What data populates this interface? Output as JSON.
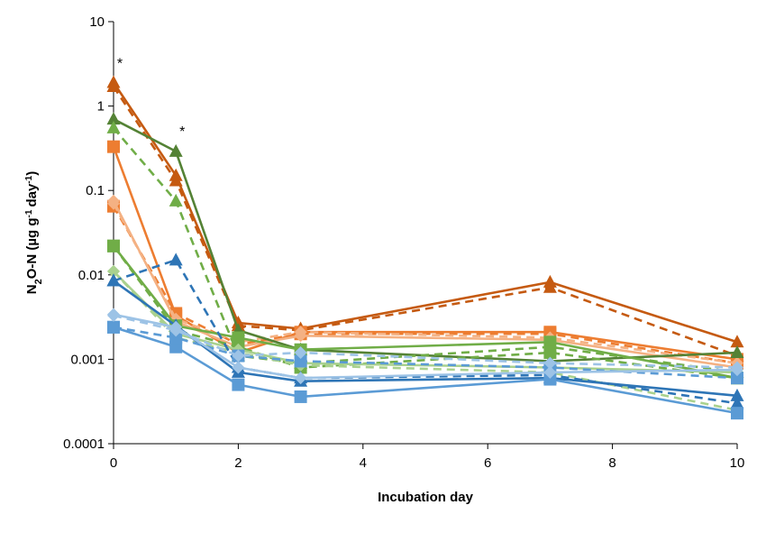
{
  "chart_data": {
    "type": "line",
    "title": "",
    "xlabel": "Incubation day",
    "ylabel": "N2O-N (µg g-1 day-1)",
    "ylabel_parts": {
      "p1": "N",
      "p2": "2",
      "p3": "O-N (µg g",
      "p4": "-1",
      "p5": "day",
      "p6": "-1",
      "p7": ")"
    },
    "y_scale": "log",
    "ylim": [
      0.0001,
      10
    ],
    "xlim": [
      0,
      10
    ],
    "x_ticks": [
      0,
      2,
      4,
      6,
      8,
      10
    ],
    "x_tick_labels": [
      "0",
      "2",
      "4",
      "6",
      "8",
      "10"
    ],
    "y_ticks": [
      0.0001,
      0.001,
      0.01,
      0.1,
      1,
      10
    ],
    "y_tick_labels": [
      "0.0001",
      "0.001",
      "0.01",
      "0.1",
      "1",
      "10"
    ],
    "grid": false,
    "legend": "none",
    "x": [
      0,
      1,
      2,
      3,
      7,
      10
    ],
    "annotations": [
      {
        "text": "*",
        "x": 0,
        "y": 3.2
      },
      {
        "text": "*",
        "x": 1,
        "y": 0.5
      }
    ],
    "series": [
      {
        "color": "#c55a11",
        "dash": false,
        "marker": "triangle",
        "values": [
          1.9,
          0.15,
          0.0027,
          0.0023,
          0.0082,
          0.0016
        ]
      },
      {
        "color": "#c55a11",
        "dash": true,
        "marker": "triangle",
        "values": [
          1.7,
          0.13,
          0.0025,
          0.0022,
          0.0071,
          0.0011
        ]
      },
      {
        "color": "#ed7d31",
        "dash": false,
        "marker": "square",
        "values": [
          0.33,
          0.0033,
          0.0012,
          0.0021,
          0.0021,
          0.001
        ]
      },
      {
        "color": "#ed7d31",
        "dash": true,
        "marker": "square",
        "values": [
          0.065,
          0.0035,
          0.0015,
          0.002,
          0.002,
          0.0009
        ]
      },
      {
        "color": "#f4b183",
        "dash": false,
        "marker": "diamond",
        "values": [
          0.075,
          0.0028,
          0.0014,
          0.0019,
          0.0017,
          0.0008
        ]
      },
      {
        "color": "#f4b183",
        "dash": true,
        "marker": "diamond",
        "values": [
          0.07,
          0.003,
          0.0016,
          0.0021,
          0.0018,
          0.0009
        ]
      },
      {
        "color": "#548235",
        "dash": false,
        "marker": "triangle",
        "values": [
          0.7,
          0.29,
          0.0022,
          0.0013,
          0.00095,
          0.0012
        ]
      },
      {
        "color": "#70ad47",
        "dash": true,
        "marker": "triangle",
        "values": [
          0.55,
          0.075,
          0.0011,
          0.0009,
          0.0014,
          0.0007
        ]
      },
      {
        "color": "#70ad47",
        "dash": false,
        "marker": "square",
        "values": [
          0.022,
          0.0025,
          0.0018,
          0.0013,
          0.0016,
          0.0006
        ]
      },
      {
        "color": "#70ad47",
        "dash": true,
        "marker": "square",
        "values": [
          0.022,
          0.0022,
          0.0014,
          0.0008,
          0.0012,
          0.0006
        ]
      },
      {
        "color": "#a9d18e",
        "dash": false,
        "marker": "diamond",
        "values": [
          0.011,
          0.002,
          0.0013,
          0.0009,
          0.0008,
          0.0007
        ]
      },
      {
        "color": "#a9d18e",
        "dash": true,
        "marker": "diamond",
        "values": [
          0.011,
          0.0018,
          0.0012,
          0.00085,
          0.0007,
          0.00025
        ]
      },
      {
        "color": "#2e75b6",
        "dash": false,
        "marker": "triangle",
        "values": [
          0.0085,
          0.0025,
          0.0007,
          0.00055,
          0.0006,
          0.00037
        ]
      },
      {
        "color": "#2e75b6",
        "dash": true,
        "marker": "triangle",
        "values": [
          0.0085,
          0.015,
          0.0008,
          0.0006,
          0.00065,
          0.0003
        ]
      },
      {
        "color": "#5b9bd5",
        "dash": false,
        "marker": "square",
        "values": [
          0.0024,
          0.0014,
          0.0005,
          0.00036,
          0.00058,
          0.00023
        ]
      },
      {
        "color": "#5b9bd5",
        "dash": true,
        "marker": "square",
        "values": [
          0.0024,
          0.0018,
          0.0011,
          0.00095,
          0.0008,
          0.0006
        ]
      },
      {
        "color": "#9dc3e6",
        "dash": false,
        "marker": "diamond",
        "values": [
          0.0034,
          0.0024,
          0.0008,
          0.0006,
          0.0007,
          0.00075
        ]
      },
      {
        "color": "#9dc3e6",
        "dash": true,
        "marker": "diamond",
        "values": [
          0.0033,
          0.0022,
          0.0011,
          0.0012,
          0.0009,
          0.0008
        ]
      }
    ]
  }
}
